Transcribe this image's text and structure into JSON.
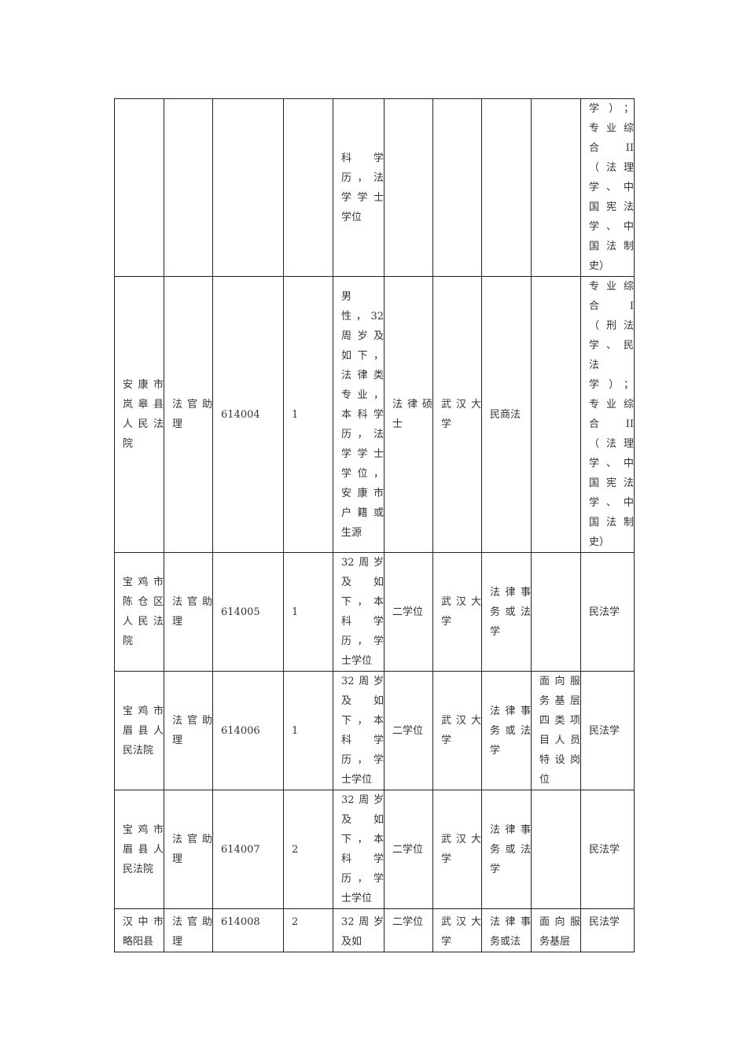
{
  "table": {
    "rows": [
      [
        [],
        [],
        [],
        [],
        [
          "科学",
          "历，法",
          "学学士",
          "学位"
        ],
        [],
        [],
        [],
        [],
        [
          "学）；",
          "专业综",
          "合  II",
          "（法理",
          "学、中",
          "国宪法",
          "学、中",
          "国法制",
          "史）"
        ]
      ],
      [
        [
          "安康市",
          "岚皋县",
          "人民法",
          "院"
        ],
        [
          "法官助",
          "理"
        ],
        [
          "614004"
        ],
        [
          "1"
        ],
        [
          "男",
          "性，32",
          "周岁及",
          "如下，",
          "法律类",
          "专业，",
          "本科学",
          "历，法",
          "学学士",
          "学位，",
          "安康市",
          "户籍或",
          "生源"
        ],
        [
          "法律硕",
          "士"
        ],
        [
          "武汉大",
          "学"
        ],
        [
          "民商法"
        ],
        [],
        [
          "专业综",
          "合  I",
          "（刑法",
          "学、民",
          "法",
          "学）；",
          "专业综",
          "合  II",
          "（法理",
          "学、中",
          "国宪法",
          "学、中",
          "国法制",
          "史）"
        ]
      ],
      [
        [
          "宝鸡市",
          "陈仓区",
          "人民法",
          "院"
        ],
        [
          "法官助",
          "理"
        ],
        [
          "614005"
        ],
        [
          "1"
        ],
        [
          "32周岁",
          "及如",
          "下，本",
          "科学",
          "历，学",
          "士学位"
        ],
        [
          "二学位"
        ],
        [
          "武汉大",
          "学"
        ],
        [
          "法律事",
          "务或法",
          "学"
        ],
        [],
        [
          "民法学"
        ]
      ],
      [
        [
          "宝鸡市",
          "眉县人",
          "民法院"
        ],
        [
          "法官助",
          "理"
        ],
        [
          "614006"
        ],
        [
          "1"
        ],
        [
          "32周岁",
          "及如",
          "下，本",
          "科学",
          "历，学",
          "士学位"
        ],
        [
          "二学位"
        ],
        [
          "武汉大",
          "学"
        ],
        [
          "法律事",
          "务或法",
          "学"
        ],
        [
          "面向服",
          "务基层",
          "四类项",
          "目人员",
          "特设岗",
          "位"
        ],
        [
          "民法学"
        ]
      ],
      [
        [
          "宝鸡市",
          "眉县人",
          "民法院"
        ],
        [
          "法官助",
          "理"
        ],
        [
          "614007"
        ],
        [
          "2"
        ],
        [
          "32周岁",
          "及如",
          "下，本",
          "科学",
          "历，学",
          "士学位"
        ],
        [
          "二学位"
        ],
        [
          "武汉大",
          "学"
        ],
        [
          "法律事",
          "务或法",
          "学"
        ],
        [],
        [
          "民法学"
        ]
      ],
      [
        [
          "汉中市",
          "略阳县"
        ],
        [
          "法官助",
          "理"
        ],
        [
          "614008"
        ],
        [
          "2"
        ],
        [
          "32周岁",
          "及如"
        ],
        [
          "二学位"
        ],
        [
          "武汉大",
          "学"
        ],
        [
          "法律事",
          "务或法"
        ],
        [
          "面向服",
          "务基层"
        ],
        [
          "民法学"
        ]
      ]
    ]
  }
}
